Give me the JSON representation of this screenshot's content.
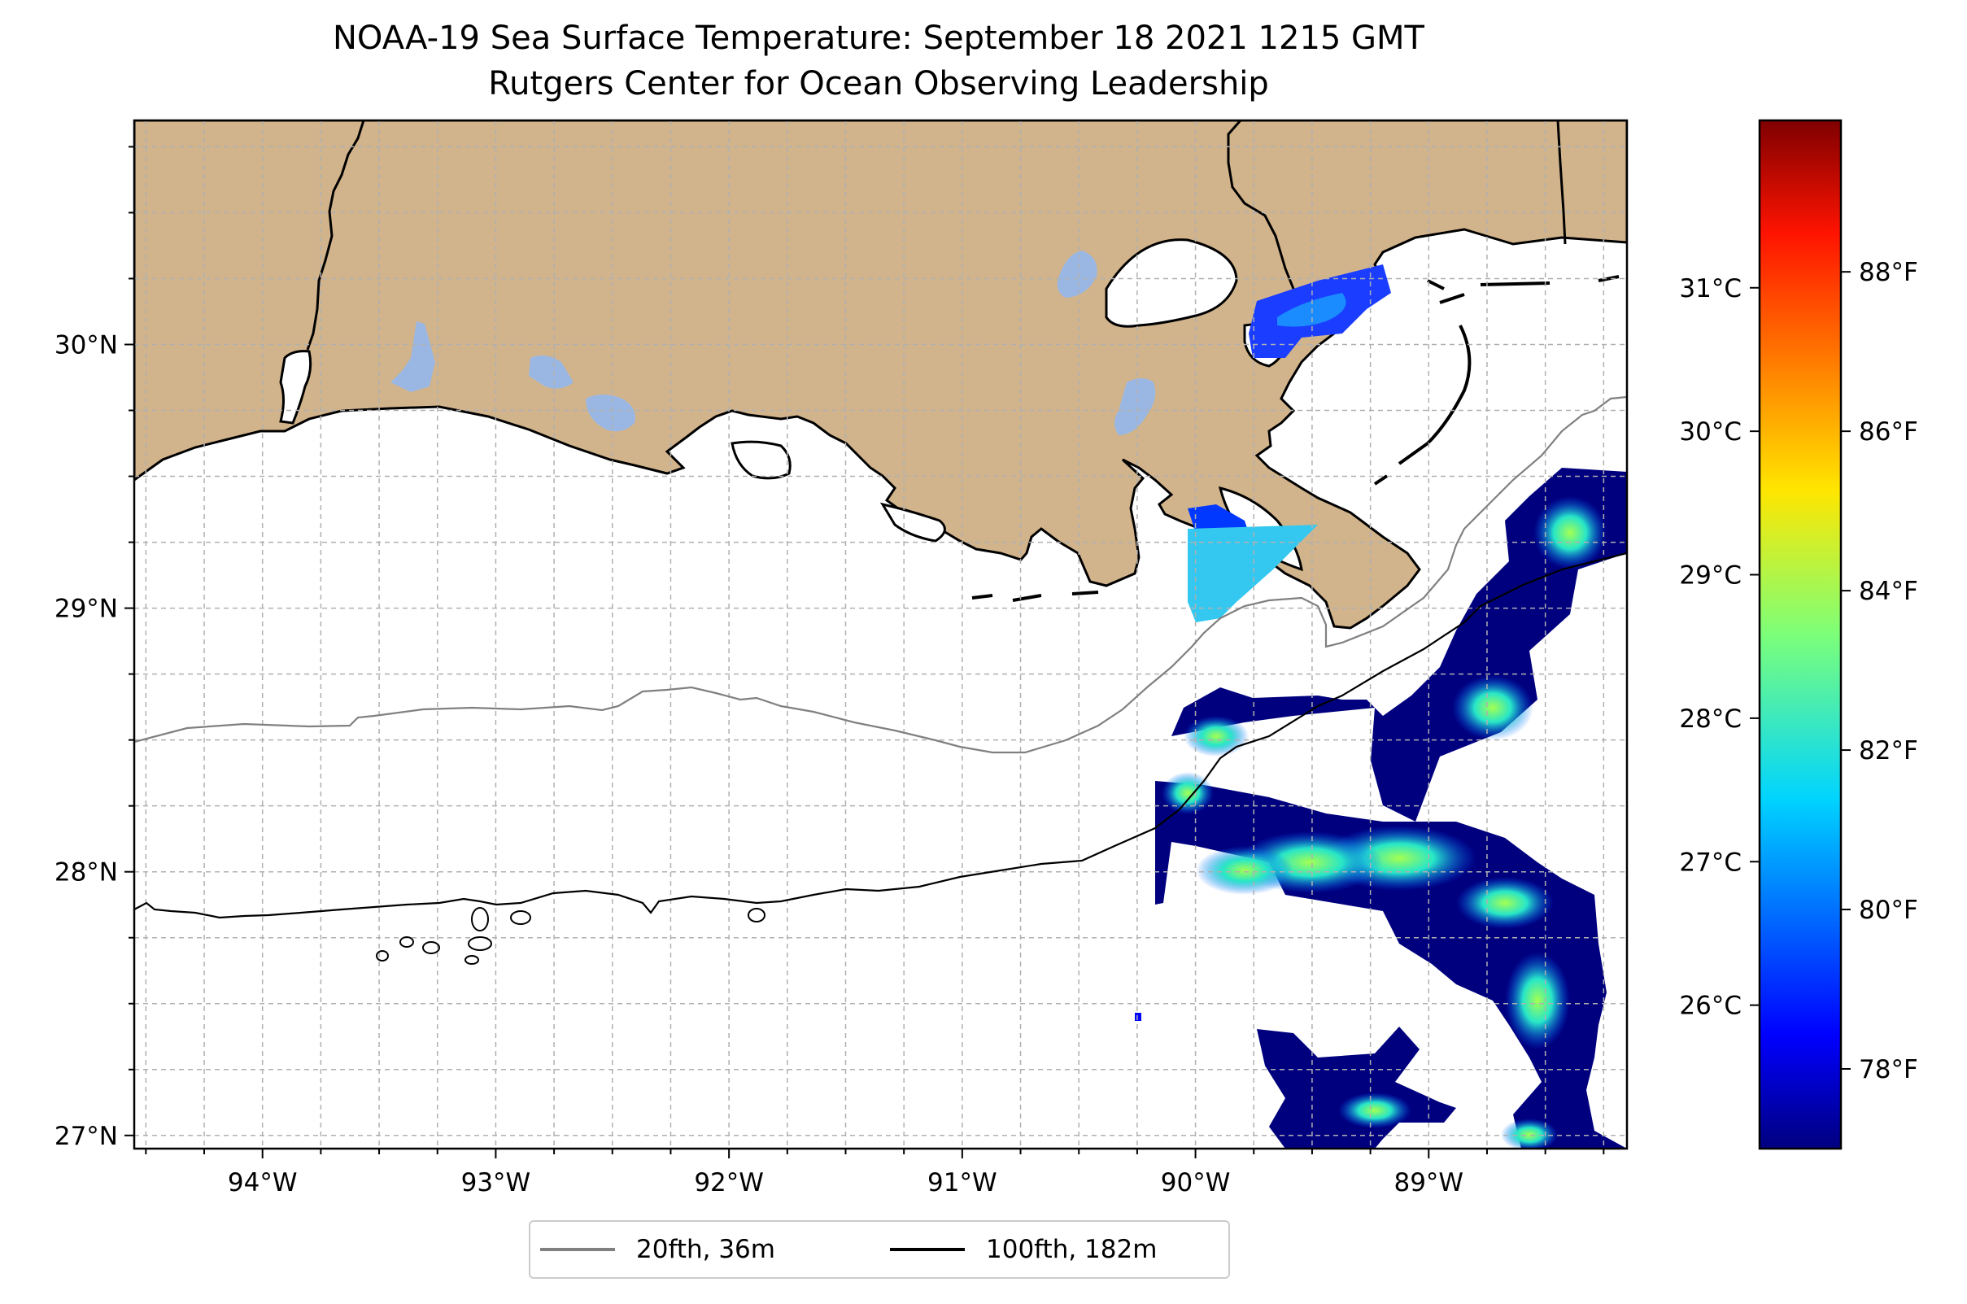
{
  "title": {
    "line1": "NOAA-19 Sea Surface Temperature: September 18 2021 1215 GMT",
    "line2": "Rutgers Center for Ocean Observing Leadership"
  },
  "map": {
    "extent": {
      "lon_min": -94.55,
      "lon_max": -88.15,
      "lat_min": 26.95,
      "lat_max": 30.85
    },
    "land_color": "#d2b48c",
    "lake_color": "#9ab7e3",
    "lon_ticks": [
      {
        "value": -94,
        "label": "94°W"
      },
      {
        "value": -93,
        "label": "93°W"
      },
      {
        "value": -92,
        "label": "92°W"
      },
      {
        "value": -91,
        "label": "91°W"
      },
      {
        "value": -90,
        "label": "90°W"
      },
      {
        "value": -89,
        "label": "89°W"
      }
    ],
    "lat_ticks": [
      {
        "value": 27,
        "label": "27°N"
      },
      {
        "value": 28,
        "label": "28°N"
      },
      {
        "value": 29,
        "label": "29°N"
      },
      {
        "value": 30,
        "label": "30°N"
      }
    ],
    "gridlines": true
  },
  "colorbar": {
    "colormap": "jet",
    "celsius_ticks": [
      {
        "value": 26,
        "label": "26°C"
      },
      {
        "value": 27,
        "label": "27°C"
      },
      {
        "value": 28,
        "label": "28°C"
      },
      {
        "value": 29,
        "label": "29°C"
      },
      {
        "value": 30,
        "label": "30°C"
      },
      {
        "value": 31,
        "label": "31°C"
      }
    ],
    "fahrenheit_ticks": [
      {
        "value": 78,
        "label": "78°F"
      },
      {
        "value": 80,
        "label": "80°F"
      },
      {
        "value": 82,
        "label": "82°F"
      },
      {
        "value": 84,
        "label": "84°F"
      },
      {
        "value": 86,
        "label": "86°F"
      },
      {
        "value": 88,
        "label": "88°F"
      }
    ],
    "range_f": [
      77.0,
      89.9
    ]
  },
  "legend": {
    "items": [
      {
        "label": "20fth, 36m",
        "color": "#808080"
      },
      {
        "label": "100fth, 182m",
        "color": "#000000"
      }
    ]
  }
}
